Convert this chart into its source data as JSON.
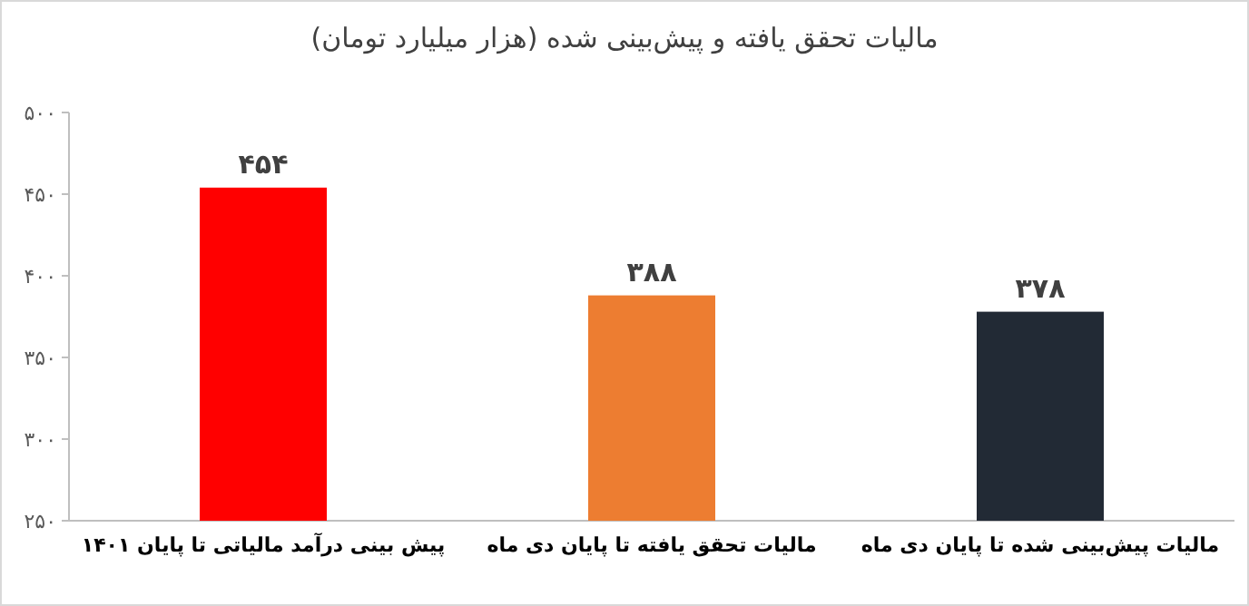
{
  "chart_data": {
    "type": "bar",
    "title": "مالیات تحقق یافته و پیش‌بینی شده (هزار میلیارد تومان)",
    "categories": [
      "پیش بینی درآمد مالیاتی تا پایان ۱۴۰۱",
      "مالیات تحقق یافته  تا پایان دی ماه",
      "مالیات  پیش‌بینی شده  تا پایان دی ماه"
    ],
    "values": [
      454,
      388,
      378
    ],
    "colors": [
      "#ff0000",
      "#ed7d31",
      "#222a35"
    ],
    "value_labels": [
      "۴۵۴",
      "۳۸۸",
      "۳۷۸"
    ],
    "ylim": [
      250,
      500
    ],
    "yticks": [
      {
        "value": 250,
        "label": "۲۵۰"
      },
      {
        "value": 300,
        "label": "۳۰۰"
      },
      {
        "value": 350,
        "label": "۳۵۰"
      },
      {
        "value": 400,
        "label": "۴۰۰"
      },
      {
        "value": 450,
        "label": "۴۵۰"
      },
      {
        "value": 500,
        "label": "۵۰۰"
      }
    ]
  }
}
